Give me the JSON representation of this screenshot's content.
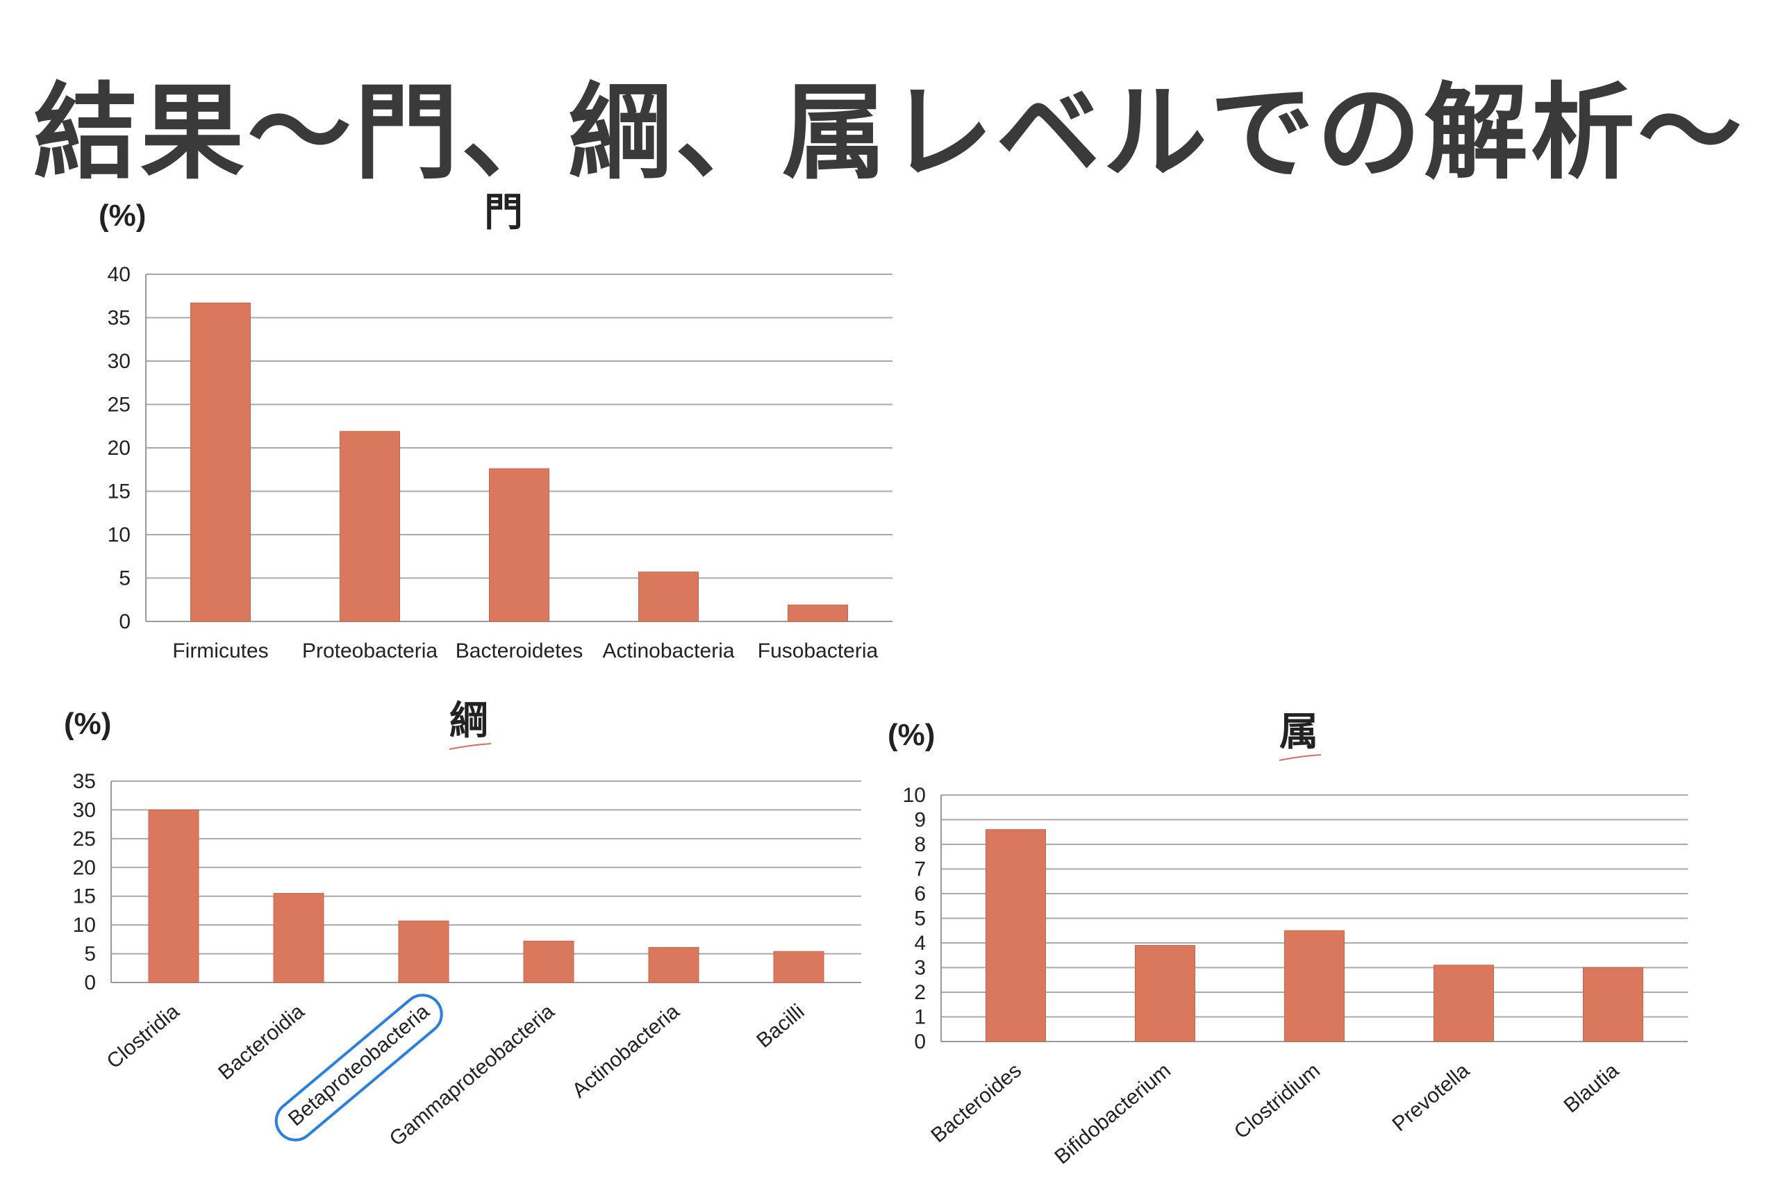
{
  "title": "結果～門、綱、属レベルでの解析～",
  "colors": {
    "bar": "#d9785c",
    "bar_edge": "#c8664c",
    "highlight": "#2b7fe0",
    "title_underline": "#e06b6b"
  },
  "chart_data": [
    {
      "type": "bar",
      "title": "門",
      "ylabel": "(%)",
      "xlabel": "",
      "categories": [
        "Firmicutes",
        "Proteobacteria",
        "Bacteroidetes",
        "Actinobacteria",
        "Fusobacteria"
      ],
      "values": [
        36.7,
        21.9,
        17.6,
        5.7,
        1.9
      ],
      "ylim": [
        0,
        40
      ],
      "yticks": [
        0,
        5,
        10,
        15,
        20,
        25,
        30,
        35,
        40
      ],
      "tick_labels": [
        "0",
        "5",
        "10",
        "15",
        "20",
        "25",
        "30",
        "35",
        "40"
      ],
      "grid": true,
      "label_rotation": "horizontal"
    },
    {
      "type": "bar",
      "title": "綱",
      "ylabel": "(%)",
      "xlabel": "",
      "categories": [
        "Clostridia",
        "Bacteroidia",
        "Betaproteobacteria",
        "Gammaproteobacteria",
        "Actinobacteria",
        "Bacilli"
      ],
      "values": [
        30.0,
        15.5,
        10.7,
        7.2,
        6.1,
        5.4
      ],
      "ylim": [
        0,
        35
      ],
      "yticks": [
        0,
        5,
        10,
        15,
        20,
        25,
        30,
        35
      ],
      "tick_labels": [
        "0",
        "5",
        "10",
        "15",
        "20",
        "25",
        "30",
        "35"
      ],
      "grid": true,
      "label_rotation": "diagonal",
      "highlighted_category": "Betaproteobacteria"
    },
    {
      "type": "bar",
      "title": "属",
      "ylabel": "(%)",
      "xlabel": "",
      "categories": [
        "Bacteroides",
        "Bifidobacterium",
        "Clostridium",
        "Prevotella",
        "Blautia"
      ],
      "values": [
        8.6,
        3.9,
        4.5,
        3.1,
        3.0
      ],
      "ylim": [
        0,
        10
      ],
      "yticks": [
        0,
        1,
        2,
        3,
        4,
        5,
        6,
        7,
        8,
        9,
        10
      ],
      "tick_labels": [
        "0",
        "1",
        "2",
        "3",
        "4",
        "5",
        "6",
        "7",
        "8",
        "9",
        "10"
      ],
      "grid": true,
      "label_rotation": "diagonal"
    }
  ]
}
